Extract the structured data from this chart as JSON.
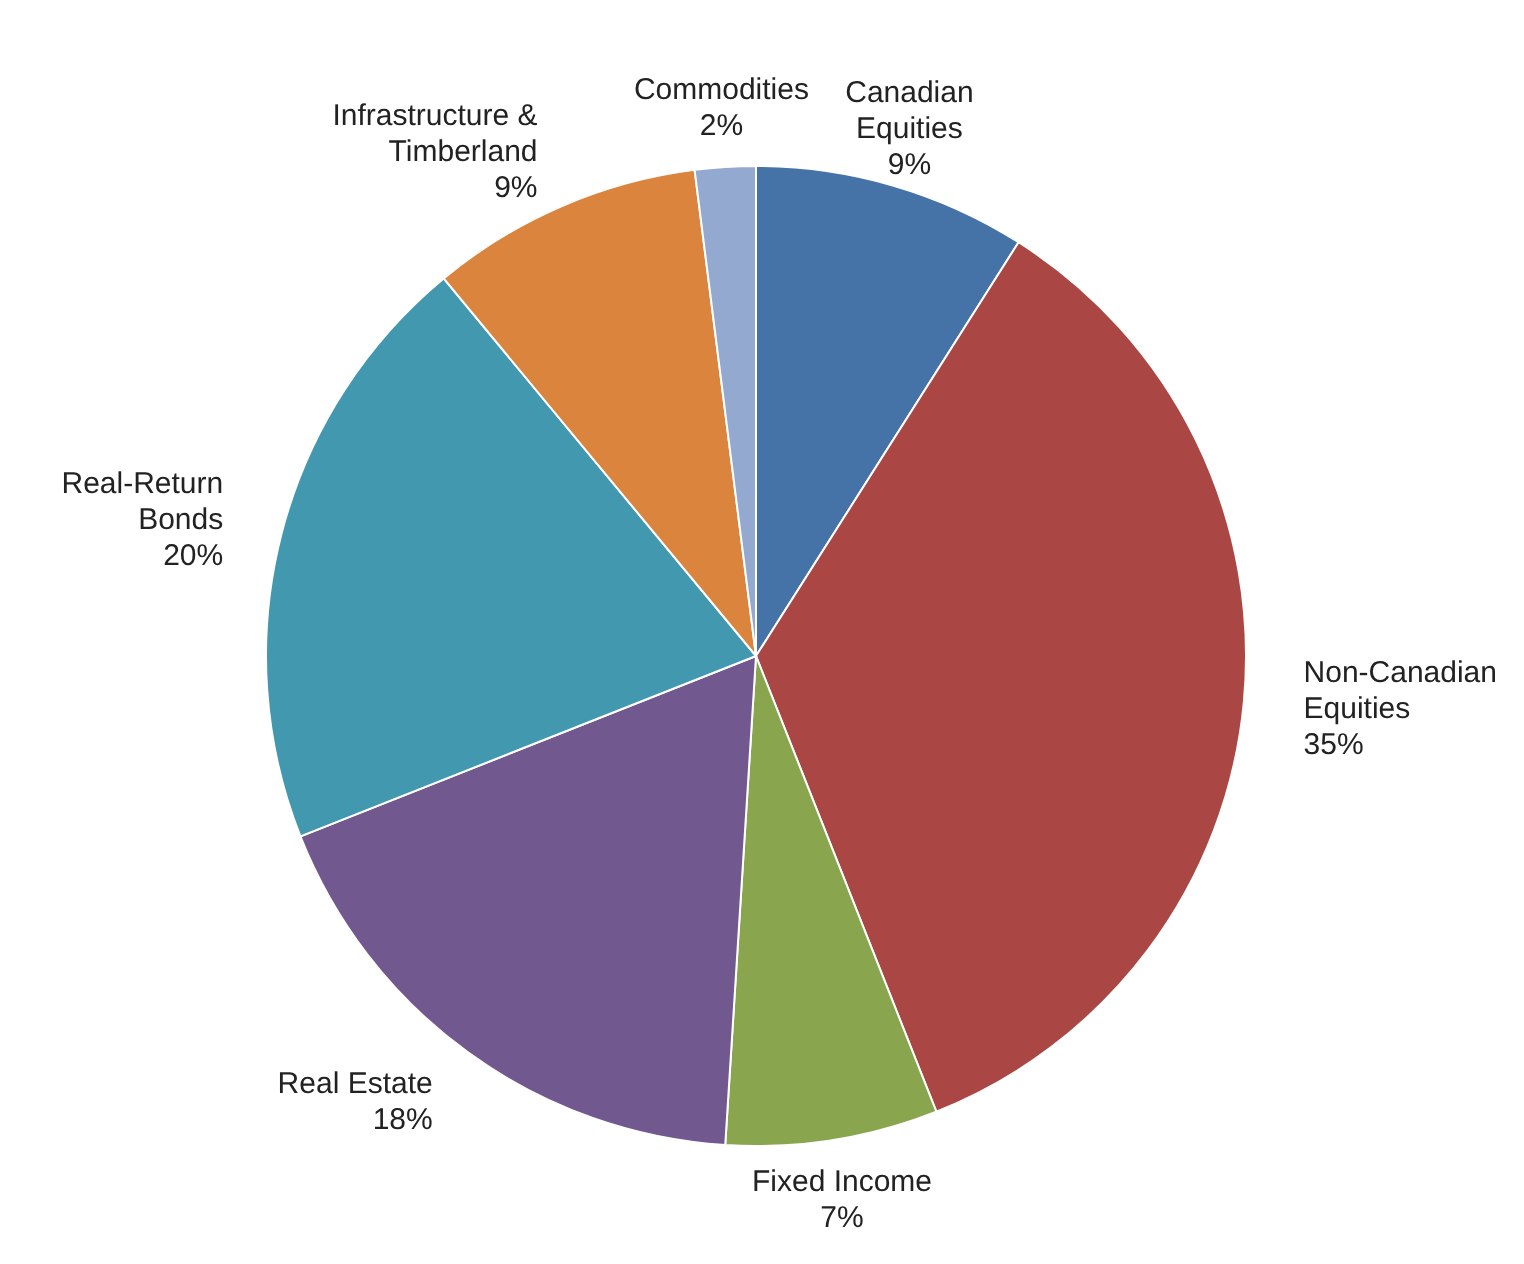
{
  "chart_data": {
    "type": "pie",
    "categories": [
      "Canadian Equities",
      "Non-Canadian Equities",
      "Fixed Income",
      "Real Estate",
      "Real-Return Bonds",
      "Infrastructure & Timberland",
      "Commodities"
    ],
    "values": [
      9,
      35,
      7,
      18,
      20,
      9,
      2
    ],
    "value_labels": [
      "9%",
      "35%",
      "7%",
      "18%",
      "20%",
      "9%",
      "2%"
    ],
    "colors": [
      "#4572a7",
      "#aa4643",
      "#89a54e",
      "#71588f",
      "#4198af",
      "#db843d",
      "#93a9cf"
    ]
  }
}
